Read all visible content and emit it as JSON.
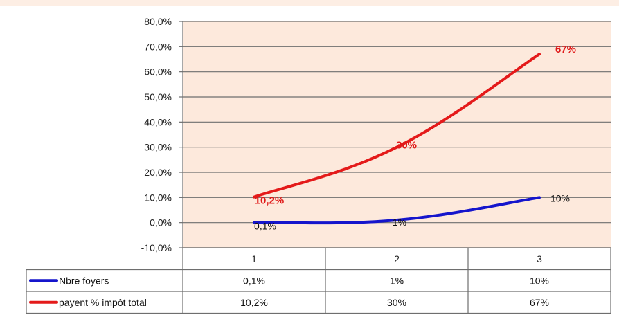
{
  "chart_data": {
    "type": "line",
    "categories": [
      "1",
      "2",
      "3"
    ],
    "ylim": [
      -10,
      80
    ],
    "y_ticks": [
      -10,
      0,
      10,
      20,
      30,
      40,
      50,
      60,
      70,
      80
    ],
    "y_tick_labels": [
      "-10,0%",
      "0,0%",
      "10,0%",
      "20,0%",
      "30,0%",
      "40,0%",
      "50,0%",
      "60,0%",
      "70,0%",
      "80,0%"
    ],
    "grid": true,
    "plot_background": "#fde9dc",
    "legend_placement": "data-table",
    "series": [
      {
        "name": "Nbre foyers",
        "values": [
          0.1,
          1,
          10
        ],
        "labels": [
          "0,1%",
          "1%",
          "10%"
        ],
        "color": "#1515cc"
      },
      {
        "name": "payent % impôt total",
        "values": [
          10.2,
          30,
          67
        ],
        "labels": [
          "10,2%",
          "30%",
          "67%"
        ],
        "color": "#e41a1a"
      }
    ]
  }
}
